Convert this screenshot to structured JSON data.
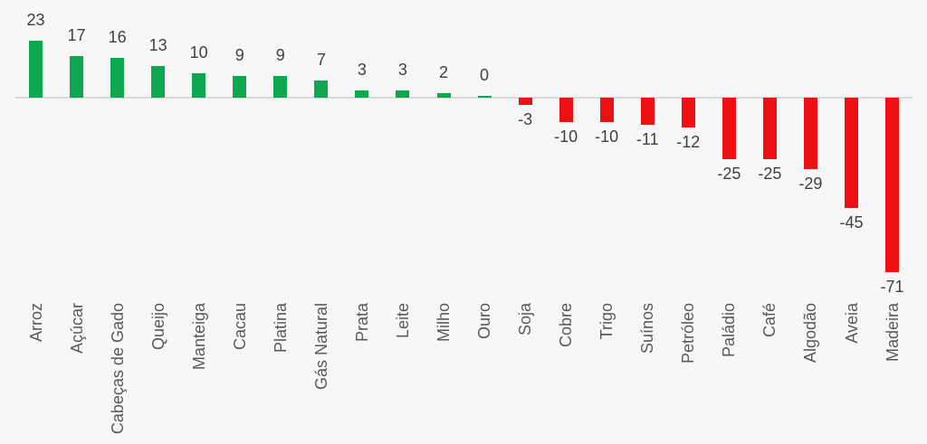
{
  "chart_data": {
    "type": "bar",
    "title": "",
    "xlabel": "",
    "ylabel": "",
    "categories": [
      "Arroz",
      "Açúcar",
      "Cabeças de Gado",
      "Queijo",
      "Manteiga",
      "Cacau",
      "Platina",
      "Gás Natural",
      "Prata",
      "Leite",
      "Milho",
      "Ouro",
      "Soja",
      "Cobre",
      "Trigo",
      "Suínos",
      "Petróleo",
      "Paládio",
      "Café",
      "Algodão",
      "Aveia",
      "Madeira"
    ],
    "values": [
      23,
      17,
      16,
      13,
      10,
      9,
      9,
      7,
      3,
      3,
      2,
      0,
      -3,
      -10,
      -10,
      -11,
      -12,
      -25,
      -25,
      -29,
      -45,
      -71
    ],
    "value_labels": [
      "23",
      "17",
      "16",
      "13",
      "10",
      "9",
      "9",
      "7",
      "3",
      "3",
      "2",
      "0",
      "-3",
      "-10",
      "-10",
      "-11",
      "-12",
      "-25",
      "-25",
      "-29",
      "-45",
      "-71"
    ],
    "ylim": [
      -71,
      23
    ],
    "grid": false,
    "legend": "none",
    "baseline": 0,
    "category_label_rotation_deg": 90,
    "value_label_position": "outside-end",
    "positive_color": "#0ca750",
    "negative_color": "#ee1111",
    "axis_line_color": "#d9d9d9",
    "value_label_color": "#404040",
    "category_label_color": "#595959",
    "background_color": "#f7f7f6"
  }
}
